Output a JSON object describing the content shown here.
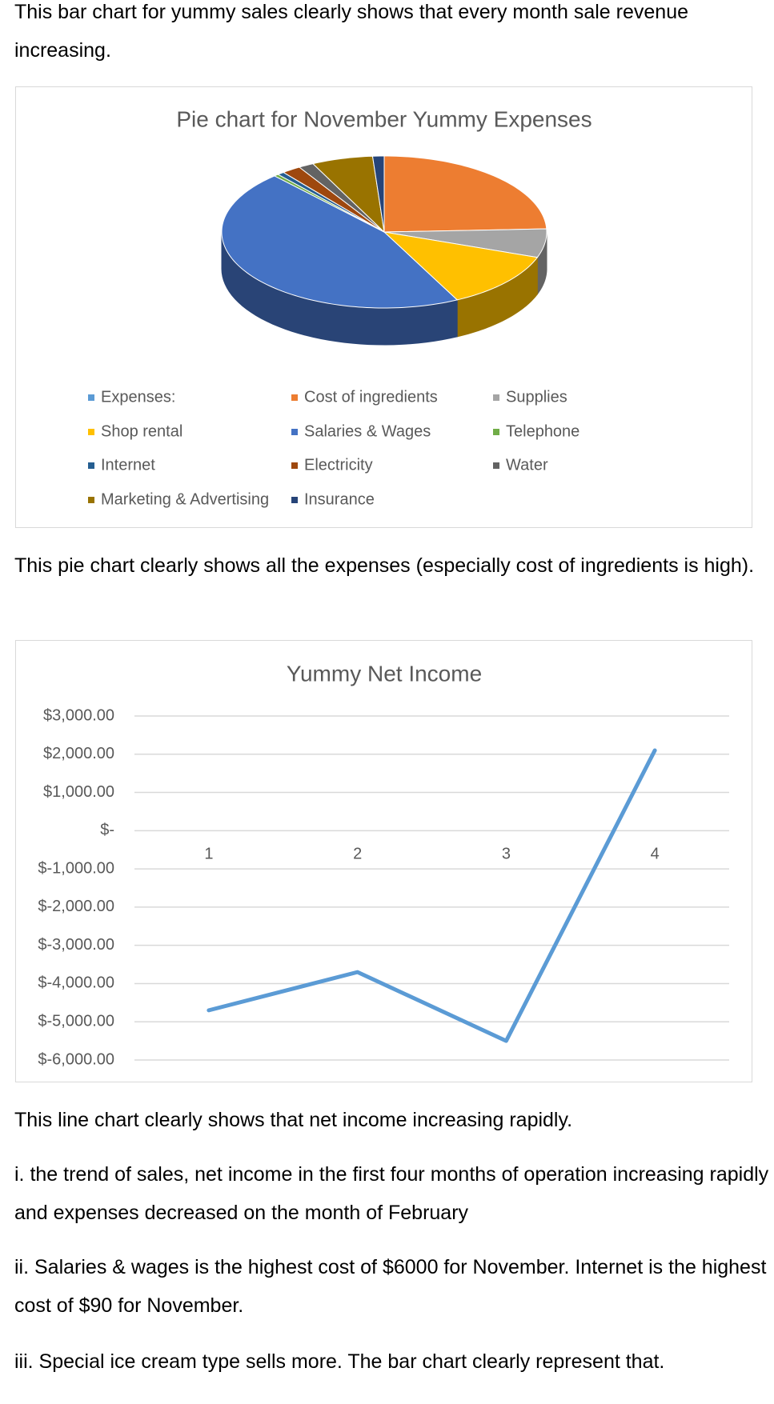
{
  "paragraphs": [
    "This bar chart for yummy sales clearly shows that every month sale revenue increasing.",
    "This pie chart clearly shows all the expenses (especially cost of ingredients is high).",
    "This line chart clearly shows that net income increasing rapidly.",
    "i. the trend of sales, net income in the first four months of operation increasing rapidly and expenses decreased on the month of February",
    "ii. Salaries & wages is the highest cost of $6000 for November. Internet is the highest cost of $90 for November.",
    "iii. Special ice cream type sells more. The bar chart clearly represent that."
  ],
  "chart_data": [
    {
      "type": "pie",
      "title": "Pie chart for November Yummy Expenses",
      "categories": [
        "Expenses:",
        "Cost of ingredients",
        "Supplies",
        "Shop rental",
        "Salaries & Wages",
        "Telephone",
        "Internet",
        "Electricity",
        "Water",
        "Marketing & Advertising",
        "Insurance"
      ],
      "values": [
        0,
        3200,
        800,
        1600,
        6000,
        60,
        90,
        250,
        200,
        800,
        150
      ],
      "colors": [
        "#5b9bd5",
        "#ed7d31",
        "#a5a5a5",
        "#ffc000",
        "#4472c4",
        "#70ad47",
        "#255e91",
        "#9e480e",
        "#636363",
        "#997300",
        "#264478"
      ]
    },
    {
      "type": "line",
      "title": "Yummy Net Income",
      "categories": [
        "1",
        "2",
        "3",
        "4"
      ],
      "series": [
        {
          "name": "Net Income",
          "color": "#5b9bd5",
          "values": [
            -4700,
            -3700,
            -5500,
            2100
          ]
        }
      ],
      "ylim": [
        -6000,
        3000
      ],
      "yticks": [
        {
          "value": 3000,
          "label": "$3,000.00"
        },
        {
          "value": 2000,
          "label": "$2,000.00"
        },
        {
          "value": 1000,
          "label": "$1,000.00"
        },
        {
          "value": 0,
          "label": "$-"
        },
        {
          "value": -1000,
          "label": "$-1,000.00"
        },
        {
          "value": -2000,
          "label": "$-2,000.00"
        },
        {
          "value": -3000,
          "label": "$-3,000.00"
        },
        {
          "value": -4000,
          "label": "$-4,000.00"
        },
        {
          "value": -5000,
          "label": "$-5,000.00"
        },
        {
          "value": -6000,
          "label": "$-6,000.00"
        }
      ],
      "grid": true
    }
  ]
}
